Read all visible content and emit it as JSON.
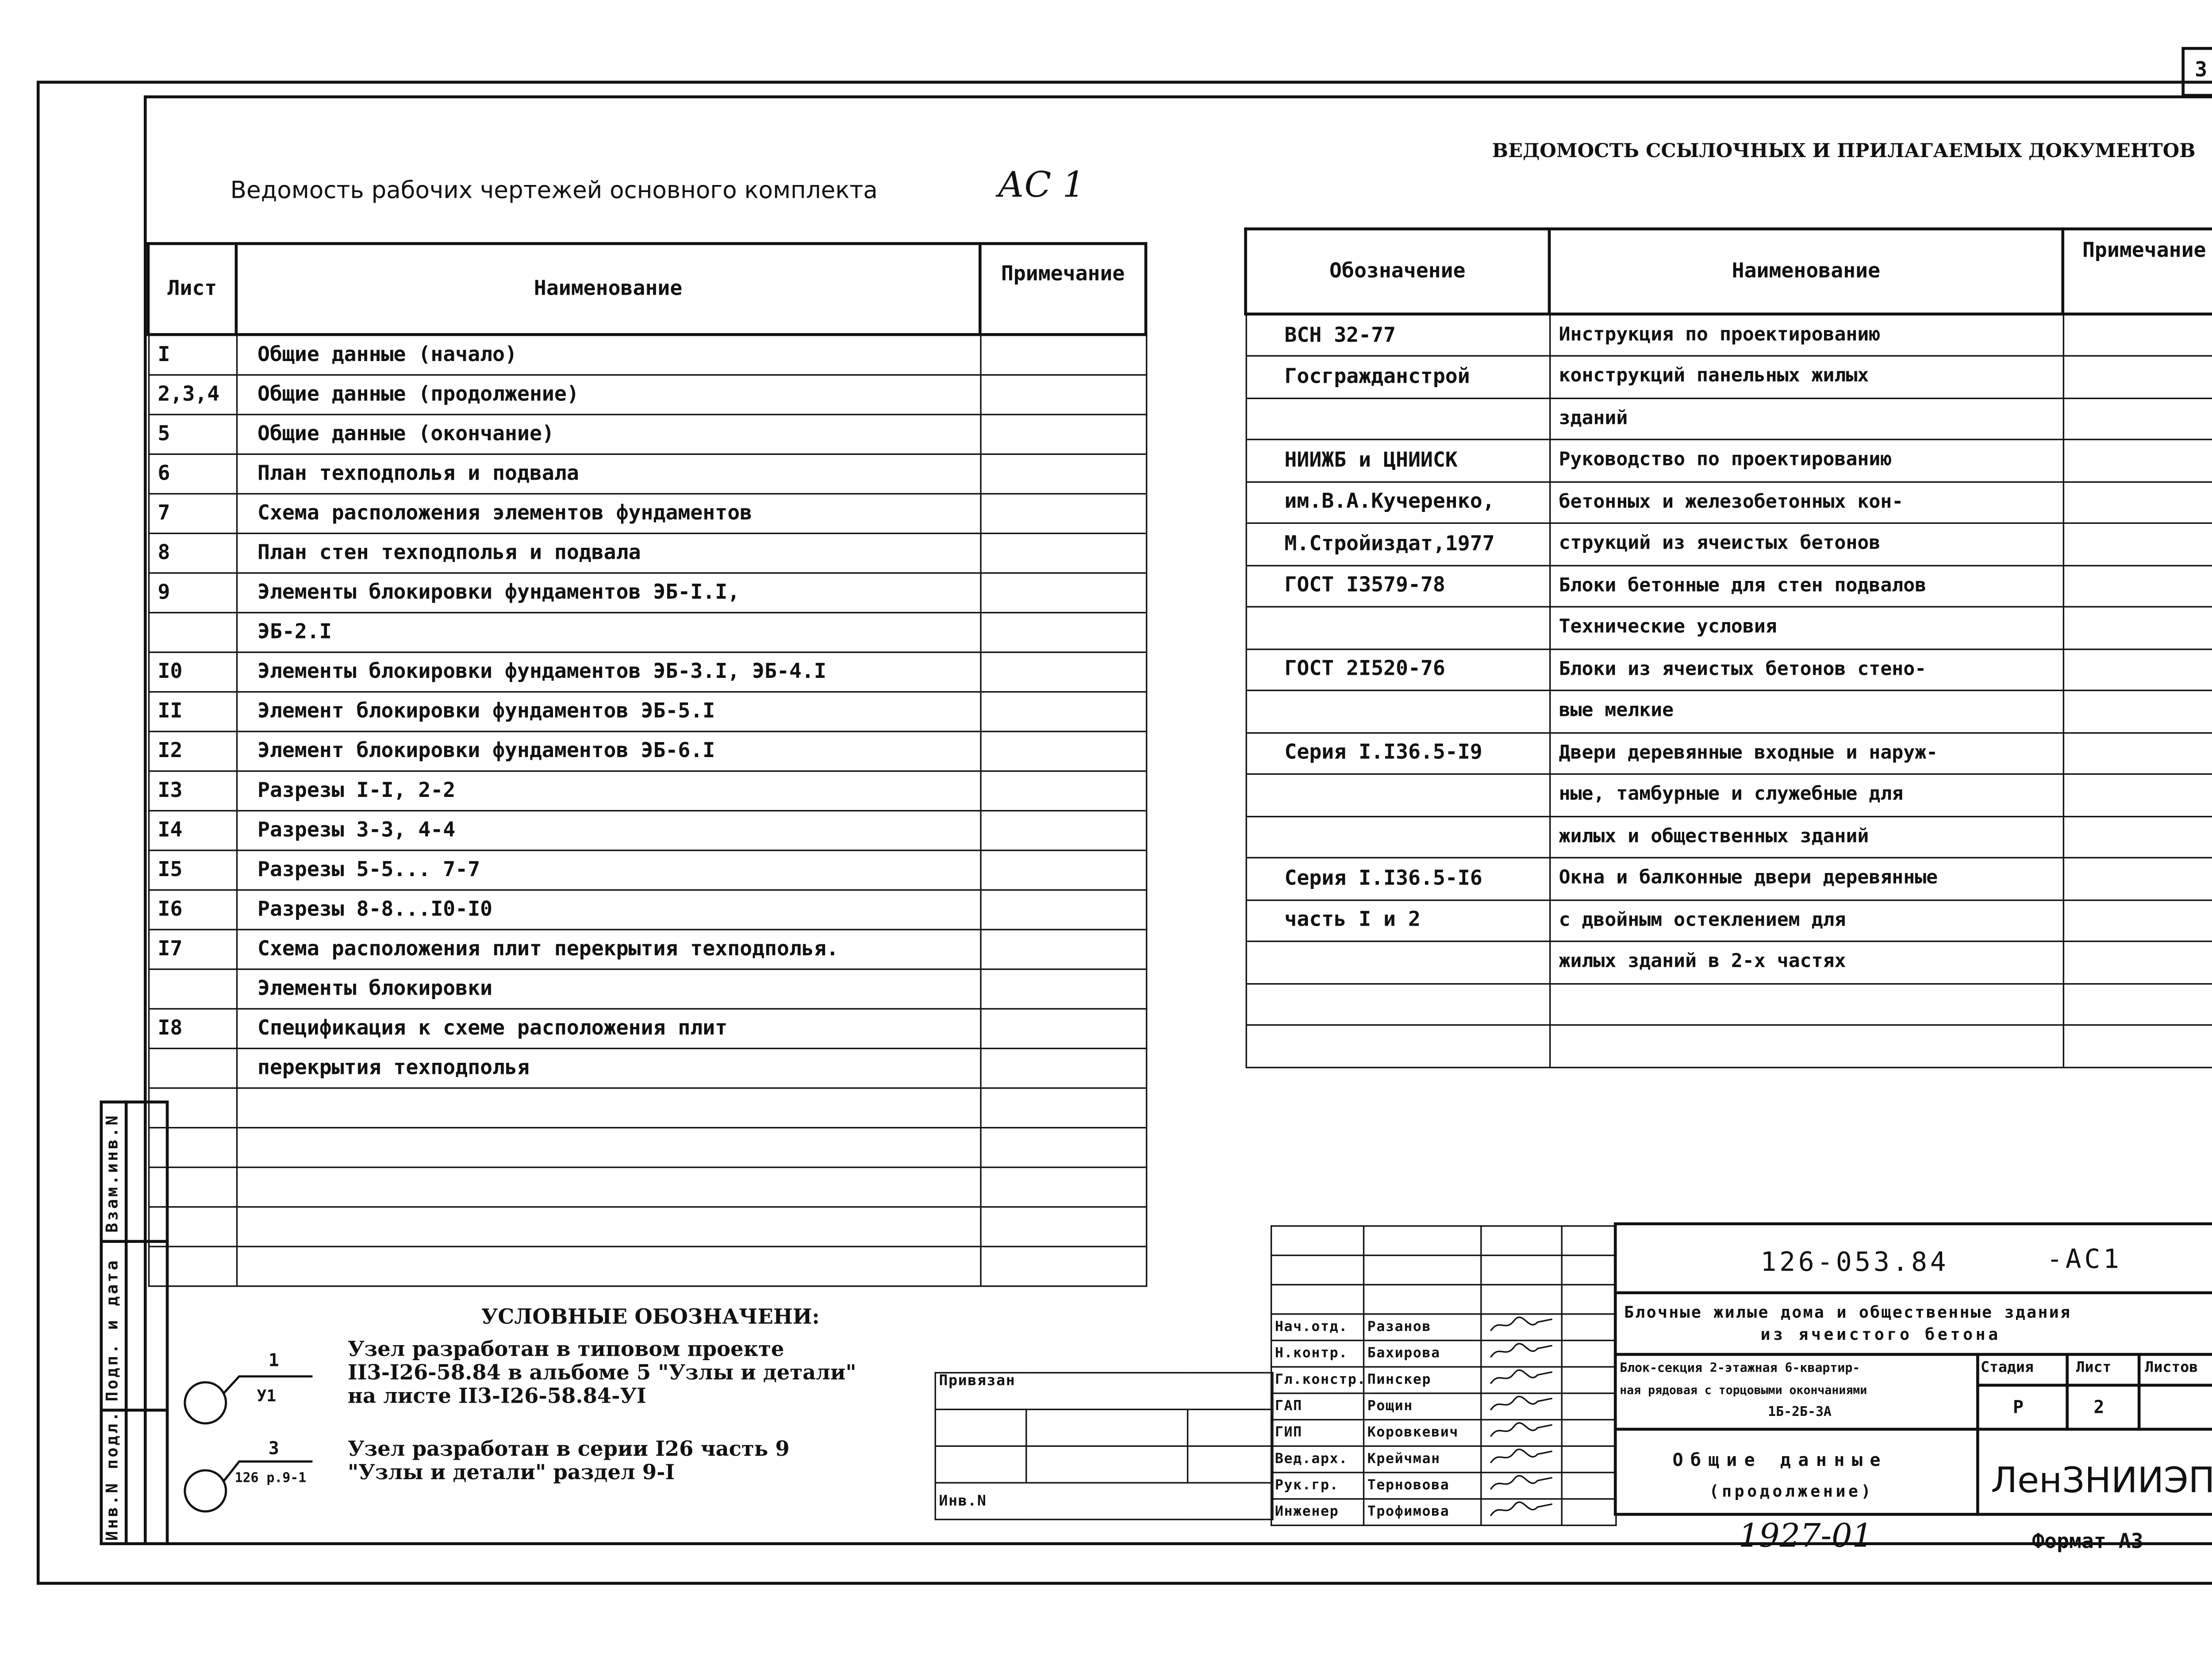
{
  "page_number": "3",
  "left_table": {
    "title": "Ведомость рабочих чертежей основного комплекта",
    "set_code": "АС 1",
    "headers": [
      "Лист",
      "Наименование",
      "Примечание"
    ],
    "rows": [
      [
        "I",
        "Общие данные (начало)"
      ],
      [
        "2,3,4",
        "Общие данные (продолжение)"
      ],
      [
        "5",
        "Общие данные (окончание)"
      ],
      [
        "6",
        "План техподполья и подвала"
      ],
      [
        "7",
        "Схема расположения элементов фундаментов"
      ],
      [
        "8",
        "План стен техподполья и подвала"
      ],
      [
        "9",
        "Элементы блокировки фундаментов ЭБ-I.I,"
      ],
      [
        "",
        "ЭБ-2.I"
      ],
      [
        "I0",
        "Элементы блокировки фундаментов ЭБ-3.I, ЭБ-4.I"
      ],
      [
        "II",
        "Элемент блокировки фундаментов ЭБ-5.I"
      ],
      [
        "I2",
        "Элемент блокировки фундаментов ЭБ-6.I"
      ],
      [
        "I3",
        "Разрезы I-I, 2-2"
      ],
      [
        "I4",
        "Разрезы 3-3, 4-4"
      ],
      [
        "I5",
        "Разрезы 5-5... 7-7"
      ],
      [
        "I6",
        "Разрезы 8-8...I0-I0"
      ],
      [
        "I7",
        "Схема расположения плит перекрытия техподполья."
      ],
      [
        "",
        "Элементы блокировки"
      ],
      [
        "I8",
        "Спецификация к схеме расположения плит"
      ],
      [
        "",
        "перекрытия техподполья"
      ],
      [
        "",
        ""
      ],
      [
        "",
        ""
      ],
      [
        "",
        ""
      ],
      [
        "",
        ""
      ],
      [
        "",
        ""
      ]
    ]
  },
  "right_table": {
    "title": "ВЕДОМОСТЬ ССЫЛОЧНЫХ И ПРИЛАГАЕМЫХ ДОКУМЕНТОВ",
    "headers": [
      "Обозначение",
      "Наименование",
      "Примечание"
    ],
    "rows": [
      [
        "ВСН 32-77",
        "Инструкция по проектированию"
      ],
      [
        "Госгражданстрой",
        "конструкций панельных жилых"
      ],
      [
        "",
        "зданий"
      ],
      [
        "НИИЖБ и ЦНИИСК",
        "Руководство по проектированию"
      ],
      [
        "им.В.А.Кучеренко,",
        "бетонных и железобетонных кон-"
      ],
      [
        "М.Стройиздат,1977",
        "струкций из ячеистых бетонов"
      ],
      [
        "ГОСТ I3579-78",
        "Блоки бетонные для стен подвалов"
      ],
      [
        "",
        "Технические условия"
      ],
      [
        "ГОСТ 2I520-76",
        "Блоки из ячеистых бетонов стено-"
      ],
      [
        "",
        "вые мелкие"
      ],
      [
        "Серия I.I36.5-I9",
        "Двери деревянные входные и наруж-"
      ],
      [
        "",
        "ные, тамбурные и служебные для"
      ],
      [
        "",
        "жилых и общественных зданий"
      ],
      [
        "Серия I.I36.5-I6",
        "Окна и балконные двери деревянные"
      ],
      [
        "часть I и 2",
        "с двойным остеклением для"
      ],
      [
        "",
        "жилых зданий в 2-х частях"
      ],
      [
        "",
        ""
      ],
      [
        "",
        ""
      ]
    ]
  },
  "legend": {
    "title": "УСЛОВНЫЕ ОБОЗНАЧЕНИ:",
    "items": [
      {
        "top": "1",
        "bottom": "У1",
        "lines": [
          "Узел разработан в типовом проекте",
          "II3-I26-58.84 в альбоме 5 \"Узлы и детали\"",
          "на листе II3-I26-58.84-УI"
        ]
      },
      {
        "top": "3",
        "bottom": "126 р.9-1",
        "lines": [
          "Узел разработан в серии I26 часть 9",
          "\"Узлы и детали\" раздел 9-I"
        ]
      }
    ]
  },
  "side_strip": [
    "Взам.инв.N",
    "Подп. и дата",
    "Инв.N подл."
  ],
  "privyazan": {
    "label": "Привязан",
    "inv_label": "Инв.N"
  },
  "stamp": {
    "code": "126-053.84",
    "set": "-АС1",
    "project": [
      "Блочные жилые дома и общественные здания",
      "из ячеистого бетона"
    ],
    "description": [
      "Блок-секция 2-этажная 6-квартир-",
      "ная рядовая с торцовыми окончаниями",
      "1Б-2Б-3А"
    ],
    "stage_label": "Стадия",
    "sheet_label": "Лист",
    "sheets_label": "Листов",
    "stage": "Р",
    "sheet": "2",
    "sheets": "",
    "sheet_title": [
      "Общие данные",
      "(продолжение)"
    ],
    "organization": "ЛенЗНИИЭП",
    "staff": [
      [
        "Нач.отд.",
        "Разанов"
      ],
      [
        "Н.контр.",
        "Бахирова"
      ],
      [
        "Гл.констр.",
        "Пинскер"
      ],
      [
        "ГАП",
        "Рощин"
      ],
      [
        "ГИП",
        "Коровкевич"
      ],
      [
        "Вед.арх.",
        "Крейчман"
      ],
      [
        "Рук.гр.",
        "Терновова"
      ],
      [
        "Инженер",
        "Трофимова"
      ]
    ]
  },
  "archive_number": "1927-01",
  "format": "Формат А3"
}
